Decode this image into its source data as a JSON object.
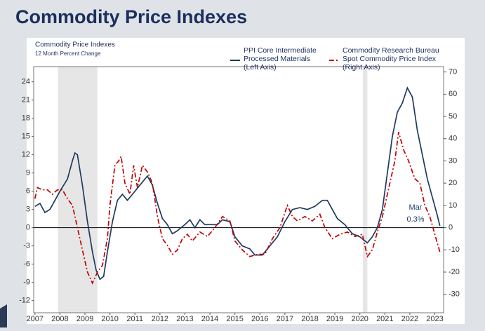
{
  "page_title": "Commodity Price Indexes",
  "chart_data": {
    "type": "line",
    "title": "Commodity Price Indexes",
    "subtitle": "12 Month Percent Change",
    "xlim": [
      2006.95,
      2023.35
    ],
    "xticks": [
      2007,
      2008,
      2009,
      2010,
      2011,
      2012,
      2013,
      2014,
      2015,
      2016,
      2017,
      2018,
      2019,
      2020,
      2021,
      2022,
      2023
    ],
    "ylim": [
      -14,
      26.5
    ],
    "yticks": [
      -12,
      -9,
      -6,
      -3,
      0,
      3,
      6,
      9,
      12,
      15,
      18,
      21,
      24
    ],
    "y2lim": [
      -38.3,
      72.4
    ],
    "y2ticks": [
      -30,
      -20,
      -10,
      0,
      10,
      20,
      30,
      40,
      50,
      60,
      70
    ],
    "shaded_periods": [
      [
        2007.92,
        2009.5
      ],
      [
        2020.12,
        2020.3
      ]
    ],
    "annotations": [
      "Mar",
      "0.3%"
    ],
    "series": [
      {
        "name": "PPI Core Intermediate\nProcessed Materials\n(Left Axis)",
        "color": "#1f3a5f",
        "axis": "y",
        "dash": "none",
        "x": [
          2007.0,
          2007.2,
          2007.4,
          2007.6,
          2007.8,
          2008.0,
          2008.3,
          2008.5,
          2008.6,
          2008.7,
          2008.9,
          2009.1,
          2009.3,
          2009.45,
          2009.6,
          2009.75,
          2009.9,
          2010.1,
          2010.3,
          2010.5,
          2010.7,
          2010.9,
          2011.1,
          2011.3,
          2011.5,
          2011.7,
          2011.9,
          2012.1,
          2012.3,
          2012.5,
          2012.7,
          2013.0,
          2013.2,
          2013.4,
          2013.6,
          2013.8,
          2014.0,
          2014.3,
          2014.5,
          2014.8,
          2015.0,
          2015.3,
          2015.6,
          2015.8,
          2016.1,
          2016.4,
          2016.7,
          2017.0,
          2017.3,
          2017.6,
          2017.9,
          2018.2,
          2018.5,
          2018.7,
          2018.9,
          2019.1,
          2019.4,
          2019.7,
          2020.0,
          2020.3,
          2020.5,
          2020.7,
          2020.9,
          2021.1,
          2021.3,
          2021.5,
          2021.7,
          2021.9,
          2022.1,
          2022.3,
          2022.5,
          2022.7,
          2022.9,
          2023.1,
          2023.2
        ],
        "values": [
          3.5,
          4,
          2.5,
          3,
          4.5,
          6,
          8,
          11,
          12.3,
          12,
          7,
          1,
          -4,
          -7,
          -8.5,
          -8,
          -4,
          1,
          4.5,
          5.5,
          4.5,
          5.5,
          6.5,
          7.5,
          8.5,
          7,
          4,
          1.5,
          0.5,
          -1,
          -0.5,
          0.5,
          1.3,
          0,
          1.3,
          0.5,
          0.5,
          0.5,
          1.3,
          1,
          -1.5,
          -3,
          -3.5,
          -4.5,
          -4.5,
          -3,
          -1.5,
          1,
          3,
          3.3,
          3,
          3.5,
          4.5,
          4.5,
          3,
          1.5,
          0.5,
          -1,
          -1.5,
          -2.5,
          -1.5,
          0,
          3,
          9,
          15,
          19,
          20.5,
          23,
          21.5,
          16,
          12,
          8,
          5,
          2,
          0.3
        ]
      },
      {
        "name": "Commodity Research Bureau\nSpot Commodity Price Index\n(Right Axis)",
        "color": "#c00000",
        "axis": "y2",
        "dash": "7 3 2 3",
        "x": [
          2007.0,
          2007.1,
          2007.3,
          2007.5,
          2007.7,
          2007.9,
          2008.1,
          2008.3,
          2008.5,
          2008.7,
          2008.9,
          2009.1,
          2009.3,
          2009.5,
          2009.7,
          2009.9,
          2010.0,
          2010.2,
          2010.35,
          2010.45,
          2010.6,
          2010.8,
          2010.95,
          2011.1,
          2011.3,
          2011.5,
          2011.7,
          2011.9,
          2012.1,
          2012.3,
          2012.5,
          2012.7,
          2012.9,
          2013.1,
          2013.3,
          2013.6,
          2013.9,
          2014.2,
          2014.5,
          2014.8,
          2015.0,
          2015.3,
          2015.6,
          2015.9,
          2016.2,
          2016.5,
          2016.8,
          2017.1,
          2017.3,
          2017.5,
          2017.8,
          2018.1,
          2018.4,
          2018.6,
          2018.9,
          2019.2,
          2019.5,
          2019.8,
          2020.1,
          2020.3,
          2020.5,
          2020.7,
          2020.9,
          2021.1,
          2021.4,
          2021.55,
          2021.75,
          2021.95,
          2022.2,
          2022.4,
          2022.6,
          2022.8,
          2023.0,
          2023.2
        ],
        "values": [
          13,
          18,
          17,
          17,
          15,
          17,
          17,
          13,
          10,
          0,
          -10,
          -20,
          -25,
          -20,
          -17,
          -5,
          10,
          28,
          30,
          32,
          20,
          15,
          28,
          18,
          28,
          25,
          20,
          5,
          -5,
          -8,
          -12,
          -10,
          -5,
          -3,
          -6,
          -2,
          -4,
          0,
          5,
          3,
          -6,
          -10,
          -13,
          -12,
          -12,
          -5,
          0,
          10,
          5,
          3,
          5,
          3,
          6,
          0,
          -5,
          -3,
          -2,
          -4,
          -3,
          -13,
          -10,
          -2,
          5,
          15,
          30,
          43,
          35,
          30,
          22,
          20,
          10,
          5,
          -3,
          -11
        ]
      }
    ]
  }
}
